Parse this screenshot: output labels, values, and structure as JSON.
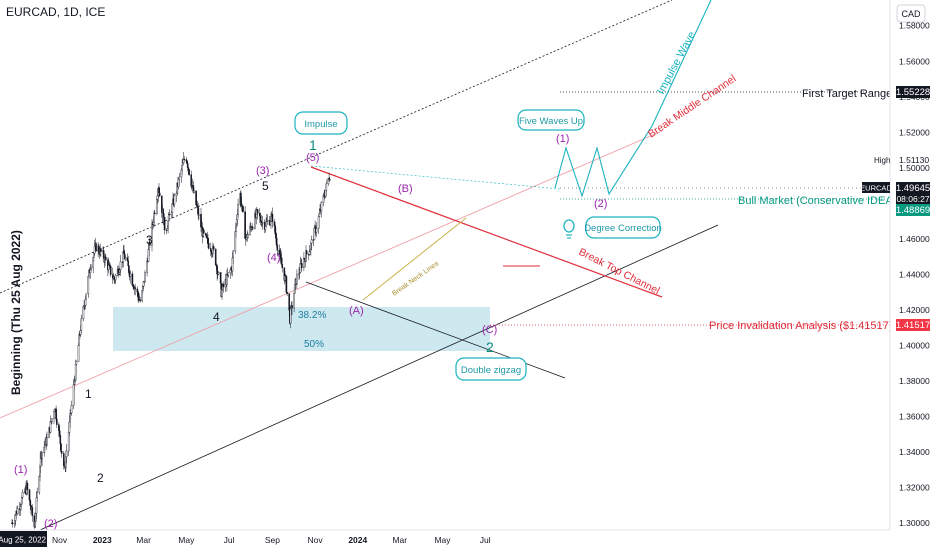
{
  "header": {
    "symbol": "EURCAD, 1D, ICE",
    "currency": "CAD"
  },
  "left_label": "Beginning (Thu 25 Aug 2022)",
  "chart_data": {
    "type": "candlestick",
    "instrument": "EURCAD",
    "timeframe": "1D",
    "exchange": "ICE",
    "x_start": "2022-08-25",
    "x_ticks": [
      "Nov",
      "2023",
      "Mar",
      "May",
      "Jul",
      "Sep",
      "Nov",
      "2024",
      "Mar",
      "May",
      "Jul"
    ],
    "x_start_label": "Thu Aug 25, 2022",
    "y_ticks": [
      "1.58000",
      "1.56000",
      "1.54000",
      "1.52000",
      "1.50000",
      "1.48000",
      "1.46000",
      "1.44000",
      "1.42000",
      "1.40000",
      "1.38000",
      "1.36000",
      "1.34000",
      "1.32000",
      "1.30000"
    ],
    "ylim": [
      1.296,
      1.5945
    ],
    "price_series": [
      {
        "date": "2022-08-25",
        "close": 1.3
      },
      {
        "date": "2022-09-15",
        "close": 1.32
      },
      {
        "date": "2022-09-26",
        "close": 1.298
      },
      {
        "date": "2022-10-05",
        "close": 1.338
      },
      {
        "date": "2022-10-15",
        "close": 1.348
      },
      {
        "date": "2022-10-25",
        "close": 1.366
      },
      {
        "date": "2022-11-08",
        "close": 1.33
      },
      {
        "date": "2022-11-20",
        "close": 1.373
      },
      {
        "date": "2022-12-01",
        "close": 1.41
      },
      {
        "date": "2022-12-15",
        "close": 1.445
      },
      {
        "date": "2022-12-23",
        "close": 1.456
      },
      {
        "date": "2023-01-03",
        "close": 1.45
      },
      {
        "date": "2023-01-18",
        "close": 1.437
      },
      {
        "date": "2023-02-01",
        "close": 1.451
      },
      {
        "date": "2023-02-15",
        "close": 1.434
      },
      {
        "date": "2023-02-25",
        "close": 1.424
      },
      {
        "date": "2023-03-10",
        "close": 1.458
      },
      {
        "date": "2023-03-22",
        "close": 1.49
      },
      {
        "date": "2023-04-01",
        "close": 1.464
      },
      {
        "date": "2023-04-15",
        "close": 1.484
      },
      {
        "date": "2023-04-30",
        "close": 1.508
      },
      {
        "date": "2023-05-10",
        "close": 1.488
      },
      {
        "date": "2023-05-25",
        "close": 1.462
      },
      {
        "date": "2023-06-10",
        "close": 1.452
      },
      {
        "date": "2023-06-20",
        "close": 1.43
      },
      {
        "date": "2023-07-05",
        "close": 1.444
      },
      {
        "date": "2023-07-16",
        "close": 1.488
      },
      {
        "date": "2023-07-25",
        "close": 1.46
      },
      {
        "date": "2023-08-10",
        "close": 1.474
      },
      {
        "date": "2023-08-20",
        "close": 1.468
      },
      {
        "date": "2023-09-01",
        "close": 1.472
      },
      {
        "date": "2023-09-10",
        "close": 1.452
      },
      {
        "date": "2023-09-20",
        "close": 1.436
      },
      {
        "date": "2023-09-26",
        "close": 1.4152
      },
      {
        "date": "2023-10-05",
        "close": 1.437
      },
      {
        "date": "2023-10-15",
        "close": 1.448
      },
      {
        "date": "2023-10-25",
        "close": 1.455
      },
      {
        "date": "2023-11-05",
        "close": 1.47
      },
      {
        "date": "2023-11-15",
        "close": 1.486
      },
      {
        "date": "2023-11-22",
        "close": 1.4964
      }
    ],
    "price_labels": {
      "high": {
        "label": "High",
        "value": "1.51130"
      },
      "current": {
        "label": "EURCAD",
        "value": "1.49645",
        "countdown": "08:06:27",
        "color": "#131722"
      },
      "first_target": {
        "value": "1.55228",
        "color": "#131722"
      },
      "bull_market": {
        "value": "1.48869",
        "color": "#089981"
      },
      "invalidation": {
        "value": "1.41517",
        "color": "#f23645"
      }
    },
    "fibonacci": [
      {
        "label": "38.2%",
        "level": 1.424
      },
      {
        "label": "50%",
        "level": 1.4
      }
    ],
    "wave_labels_purple": [
      "(1)",
      "(2)",
      "(3)",
      "(4)",
      "(5)",
      "(A)",
      "(B)",
      "(C)",
      "(1)",
      "(2)"
    ],
    "wave_labels_black": [
      "1",
      "2",
      "3",
      "4",
      "5"
    ],
    "wave_labels_teal": [
      "1",
      "2"
    ],
    "callouts": [
      "Impulse",
      "Five Waves Up",
      "Degree Correction",
      "Double zigzag"
    ],
    "annotations": {
      "first_target_range": "First Target Range",
      "bull_market": "Bull Market (Conservative IDEA)",
      "invalidation": "Price Invalidation Analysis ($1.41517)",
      "break_middle_channel": "Break Middle Channel",
      "break_top_channel": "Break Top Channel",
      "impulse_wave": "Impulse Wave",
      "break_neck_lines": "Break Neck Lines"
    },
    "colors": {
      "up": "#131722",
      "down": "#131722",
      "teal": "#1ab3c0",
      "red": "#e02d3b",
      "green": "#089981",
      "fib_zone": "#add8e6",
      "purple": "#9c27b0"
    }
  }
}
